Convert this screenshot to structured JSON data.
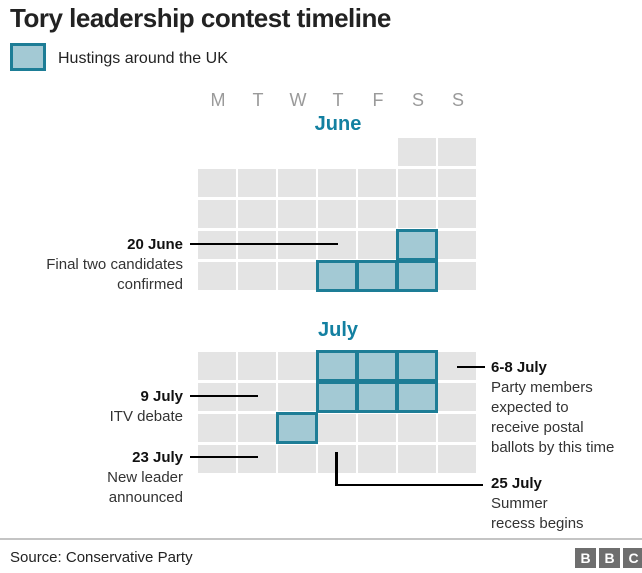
{
  "title": "Tory leadership contest timeline",
  "legend": {
    "label": "Hustings around the UK"
  },
  "calendar": {
    "day_headers": [
      "M",
      "T",
      "W",
      "T",
      "F",
      "S",
      "S"
    ],
    "months": [
      {
        "name": "June",
        "weeks": [
          [
            0,
            0,
            0,
            0,
            0,
            1,
            1
          ],
          [
            1,
            1,
            1,
            1,
            1,
            1,
            1
          ],
          [
            1,
            1,
            1,
            1,
            1,
            1,
            1
          ],
          [
            1,
            1,
            1,
            1,
            1,
            2,
            1
          ],
          [
            1,
            1,
            1,
            2,
            2,
            2,
            1
          ]
        ]
      },
      {
        "name": "July",
        "weeks": [
          [
            1,
            1,
            1,
            2,
            2,
            2,
            1
          ],
          [
            1,
            1,
            1,
            2,
            2,
            2,
            1
          ],
          [
            1,
            1,
            2,
            1,
            1,
            1,
            1
          ],
          [
            1,
            1,
            1,
            1,
            1,
            1,
            1
          ]
        ]
      }
    ]
  },
  "annotations": {
    "jun20": {
      "date": "20 June",
      "line1": "Final two candidates",
      "line2": "confirmed"
    },
    "jul9": {
      "date": "9 July",
      "line1": "ITV debate"
    },
    "jul23": {
      "date": "23 July",
      "line1": "New leader",
      "line2": "announced"
    },
    "jul68": {
      "date": "6-8 July",
      "line1": "Party members",
      "line2": "expected to",
      "line3": "receive postal",
      "line4": "ballots by this time"
    },
    "jul25": {
      "date": "25 July",
      "line1": "Summer",
      "line2": "recess begins"
    }
  },
  "footer": {
    "source": "Source: Conservative Party",
    "logo_letters": [
      "B",
      "B",
      "C"
    ]
  },
  "colors": {
    "accent_teal": "#1380a1",
    "cell_gray": "#e4e4e4",
    "highlight_fill": "#a3c9d4",
    "highlight_border": "#1d7d96",
    "day_header_gray": "#9a9a9a",
    "logo_gray": "#6e6e6e"
  },
  "chart_data": {
    "type": "heatmap",
    "title": "Tory leadership contest timeline",
    "legend_entries": [
      {
        "label": "Hustings around the UK",
        "fill": "#a3c9d4",
        "border": "#1d7d96"
      }
    ],
    "day_columns": [
      "M",
      "T",
      "W",
      "T",
      "F",
      "S",
      "S"
    ],
    "months": [
      {
        "name": "June",
        "first_day_weekday": "Saturday",
        "weeks_shown": 5,
        "hustings_days": [
          22,
          27,
          28,
          29
        ]
      },
      {
        "name": "July",
        "first_day_weekday": "Monday",
        "weeks_shown": 4,
        "hustings_days": [
          4,
          5,
          6,
          11,
          12,
          13,
          17
        ]
      }
    ],
    "annotations": [
      {
        "date": "20 June",
        "text": "Final two candidates confirmed"
      },
      {
        "date": "6-8 July",
        "text": "Party members expected to receive postal ballots by this time"
      },
      {
        "date": "9 July",
        "text": "ITV debate"
      },
      {
        "date": "23 July",
        "text": "New leader announced"
      },
      {
        "date": "25 July",
        "text": "Summer recess begins"
      }
    ],
    "source": "Source: Conservative Party"
  }
}
